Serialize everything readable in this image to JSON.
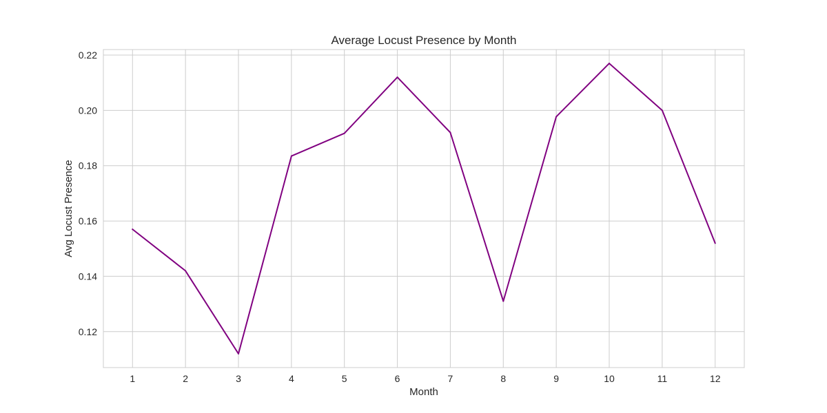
{
  "chart_data": {
    "type": "line",
    "title": "Average Locust Presence by Month",
    "xlabel": "Month",
    "ylabel": "Avg Locust Presence",
    "x": [
      1,
      2,
      3,
      4,
      5,
      6,
      7,
      8,
      9,
      10,
      11,
      12
    ],
    "series": [
      {
        "values": [
          0.157,
          0.142,
          0.112,
          0.1835,
          0.1917,
          0.212,
          0.192,
          0.131,
          0.1977,
          0.217,
          0.2,
          0.152
        ],
        "color": "#800080"
      }
    ],
    "xlim": [
      0.45,
      12.55
    ],
    "ylim": [
      0.107,
      0.222
    ],
    "yticks": [
      "0.12",
      "0.14",
      "0.16",
      "0.18",
      "0.20",
      "0.22"
    ],
    "xticks": [
      "1",
      "2",
      "3",
      "4",
      "5",
      "6",
      "7",
      "8",
      "9",
      "10",
      "11",
      "12"
    ],
    "grid": true,
    "legend": "none",
    "colors": {
      "grid": "#cccccc",
      "spine": "#cccccc",
      "text": "#262626",
      "background": "#ffffff"
    }
  }
}
